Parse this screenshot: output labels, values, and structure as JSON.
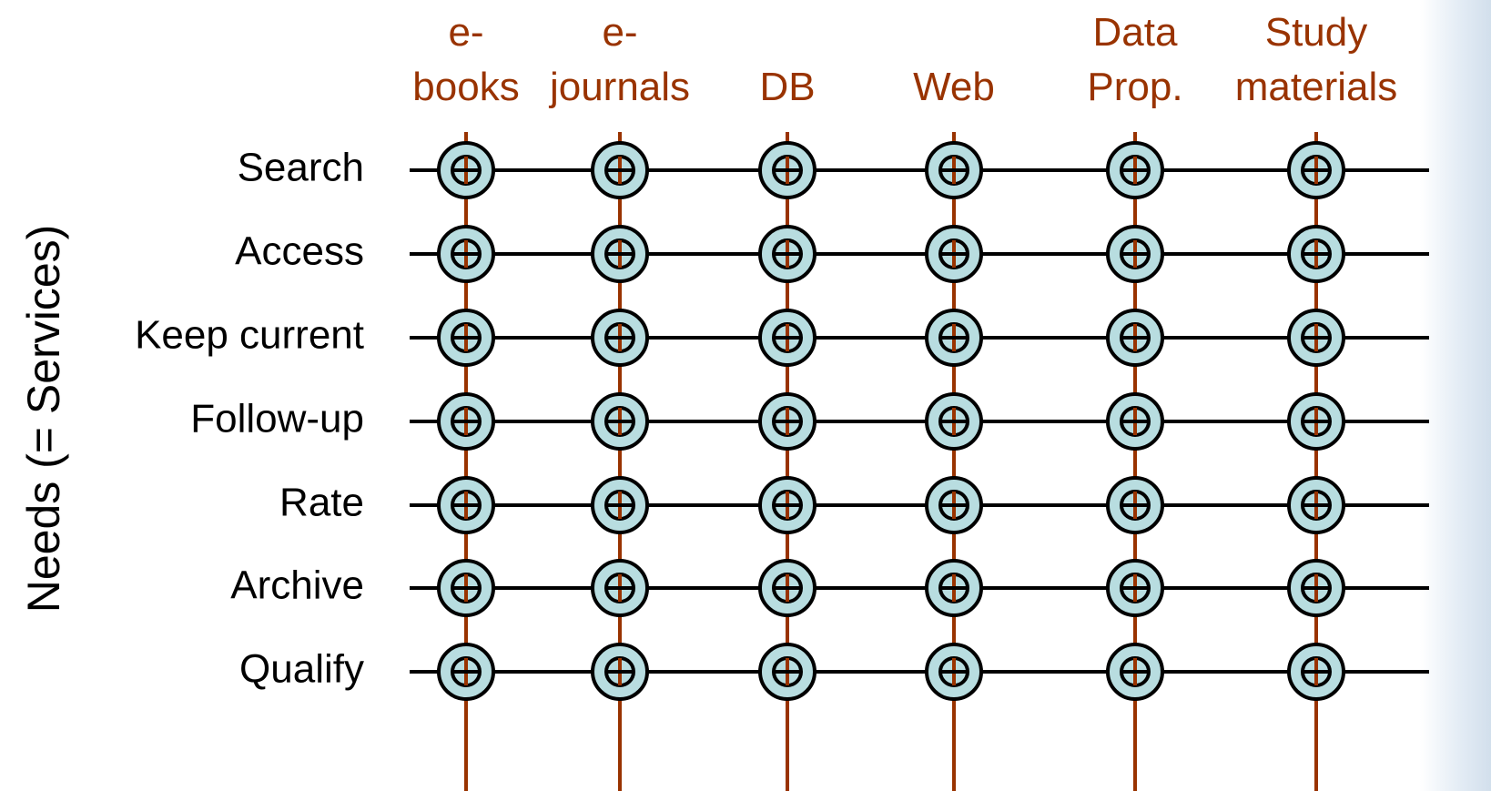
{
  "axis_label": "Needs (= Services)",
  "columns": [
    {
      "lines": [
        "e-",
        "books"
      ]
    },
    {
      "lines": [
        "e-",
        "journals"
      ]
    },
    {
      "lines": [
        "DB"
      ]
    },
    {
      "lines": [
        "Web"
      ]
    },
    {
      "lines": [
        "Data",
        "Prop."
      ]
    },
    {
      "lines": [
        "Study",
        "materials"
      ]
    }
  ],
  "rows": [
    "Search",
    "Access",
    "Keep current",
    "Follow-up",
    "Rate",
    "Archive",
    "Qualify"
  ]
}
